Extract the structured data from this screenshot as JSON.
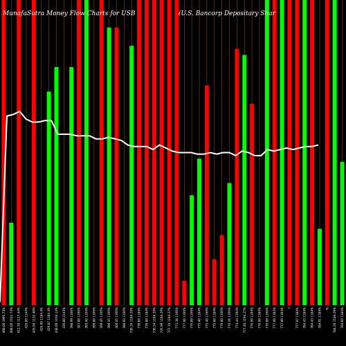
{
  "colors": {
    "background": "#000000",
    "up": "#00ff00",
    "down": "#ff0000",
    "grid": "#8a4b00",
    "line": "#ffffff",
    "text": "#ffffff"
  },
  "chart_data": {
    "type": "bar",
    "title_left": "MunafaSutra  Money Flow  Charts for USB",
    "title_right": "(U.S.                                    Bancorp Depositary Shar",
    "ylim": [
      0,
      100
    ],
    "categories": [
      "408.00 1995.73%",
      "408.00 2101.73%",
      "412.50 1127.44%",
      "426.00 1144%",
      "426.00 1132.48%",
      "426.00 1184.4%",
      "426.87 1184.4%",
      "438.00 1164.14%",
      "436.80 2143%",
      "398.99 1166%",
      "397.00 1166%",
      "395.40 1164%",
      "399.80 1166%",
      "399.45 1166%",
      "399.45 1166%",
      "400.45 1166%",
      "398.93 1166%",
      "736.20 1184.29%",
      "736.00 1184%",
      "736.00 1184%",
      "736.54 1184.29%",
      "726.99 1184.29%",
      "777.10 1184.27%",
      "773.38 1166%",
      "777.00 1166%",
      "776.89 1166%",
      "775.40 1184%",
      "775.40 1166%",
      "775.00 1184%",
      "779.80 1166%",
      "776.26 1166%",
      "774.44 1194%",
      "777.40 1194.27%",
      "776.99 1184%",
      "776.99 1184%",
      "776.89 1166%",
      "777.00 1184%",
      "777.80 1184%",
      "?",
      "777.97 1184%",
      "784.43 1184%",
      "784.43 1184%",
      "784.91 1184%",
      "%",
      "784.20 1184.29%",
      "784.00 1184%"
    ],
    "bars": [
      {
        "v": 100,
        "c": "down"
      },
      {
        "v": 27,
        "c": "up"
      },
      {
        "v": 100,
        "c": "down"
      },
      {
        "v": 0,
        "c": "up"
      },
      {
        "v": 100,
        "c": "down"
      },
      {
        "v": 0,
        "c": "up"
      },
      {
        "v": 70,
        "c": "up"
      },
      {
        "v": 78,
        "c": "up"
      },
      {
        "v": 0,
        "c": "up"
      },
      {
        "v": 78,
        "c": "up"
      },
      {
        "v": 100,
        "c": "down"
      },
      {
        "v": 100,
        "c": "up"
      },
      {
        "v": 0,
        "c": "up"
      },
      {
        "v": 100,
        "c": "down"
      },
      {
        "v": 91,
        "c": "up"
      },
      {
        "v": 91,
        "c": "down"
      },
      {
        "v": 0,
        "c": "up"
      },
      {
        "v": 85,
        "c": "up"
      },
      {
        "v": 100,
        "c": "down"
      },
      {
        "v": 100,
        "c": "down"
      },
      {
        "v": 100,
        "c": "down"
      },
      {
        "v": 100,
        "c": "down"
      },
      {
        "v": 100,
        "c": "down"
      },
      {
        "v": 100,
        "c": "down"
      },
      {
        "v": 8,
        "c": "down"
      },
      {
        "v": 36,
        "c": "up"
      },
      {
        "v": 48,
        "c": "up"
      },
      {
        "v": 72,
        "c": "down"
      },
      {
        "v": 15,
        "c": "down"
      },
      {
        "v": 23,
        "c": "down"
      },
      {
        "v": 40,
        "c": "up"
      },
      {
        "v": 84,
        "c": "down"
      },
      {
        "v": 82,
        "c": "up"
      },
      {
        "v": 66,
        "c": "down"
      },
      {
        "v": 0,
        "c": "up"
      },
      {
        "v": 100,
        "c": "up"
      },
      {
        "v": 100,
        "c": "down"
      },
      {
        "v": 100,
        "c": "up"
      },
      {
        "v": 100,
        "c": "down"
      },
      {
        "v": 100,
        "c": "down"
      },
      {
        "v": 100,
        "c": "up"
      },
      {
        "v": 100,
        "c": "down"
      },
      {
        "v": 25,
        "c": "up"
      },
      {
        "v": 100,
        "c": "down"
      },
      {
        "v": 100,
        "c": "up"
      },
      {
        "v": 47,
        "c": "up"
      }
    ],
    "line": [
      1,
      62,
      62.5,
      63.5,
      61,
      60,
      60,
      60.5,
      60.5,
      56,
      56,
      56,
      55.5,
      55.5,
      55.5,
      54.5,
      54.5,
      55,
      54.5,
      54,
      52.5,
      52,
      52,
      52,
      51,
      52.5,
      51.5,
      50.5,
      50,
      50,
      50,
      49.5,
      49.5,
      50,
      49.5,
      50,
      50,
      49,
      50.5,
      50,
      49,
      49,
      51,
      50.5,
      51,
      51.5,
      51,
      51.5,
      52,
      52,
      52.5
    ]
  }
}
